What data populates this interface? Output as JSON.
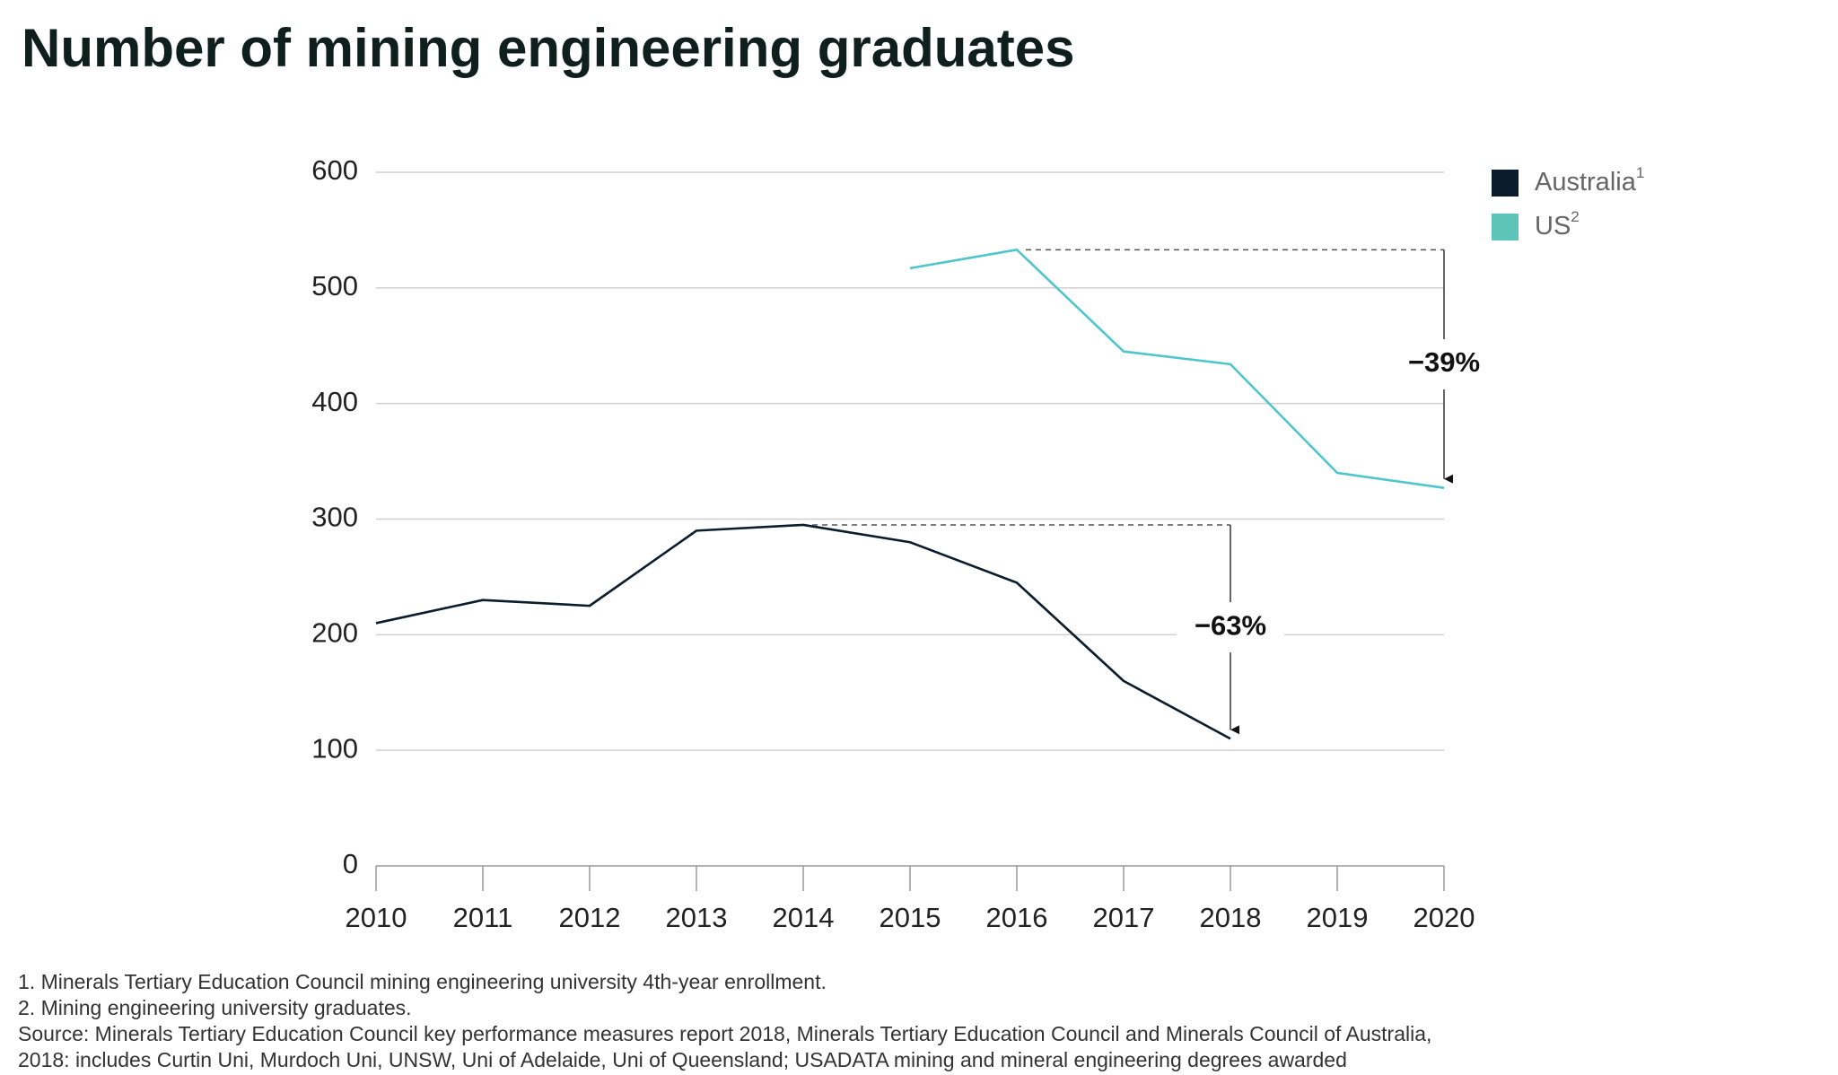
{
  "chart_data": {
    "type": "line",
    "title": "Number of mining engineering graduates",
    "x": [
      2010,
      2011,
      2012,
      2013,
      2014,
      2015,
      2016,
      2017,
      2018,
      2019,
      2020
    ],
    "series": [
      {
        "name": "Australia",
        "note": "1",
        "color": "#0b1c2c",
        "values": [
          210,
          230,
          225,
          290,
          295,
          280,
          245,
          160,
          110,
          null,
          null
        ]
      },
      {
        "name": "US",
        "note": "2",
        "color": "#4fc6cb",
        "values": [
          null,
          null,
          null,
          null,
          null,
          517,
          533,
          445,
          434,
          340,
          327
        ]
      }
    ],
    "xlim": [
      2010,
      2020
    ],
    "xticks": [
      2010,
      2011,
      2012,
      2013,
      2014,
      2015,
      2016,
      2017,
      2018,
      2019,
      2020
    ],
    "ylim": [
      0,
      600
    ],
    "yticks": [
      0,
      100,
      200,
      300,
      400,
      500,
      600
    ],
    "grid": true,
    "legend": "top-right",
    "annotations": [
      "−63%",
      "−39%"
    ],
    "footnotes": [
      "1. Minerals Tertiary Education Council mining engineering university 4th-year enrollment.",
      "2. Mining engineering university graduates.",
      "Source: Minerals Tertiary Education Council key performance measures report 2018, Minerals Tertiary Education Council and Minerals Council of Australia,",
      "2018: includes Curtin Uni, Murdoch Uni, UNSW, Uni of Adelaide, Uni of Queensland; USADATA mining and mineral engineering degrees awarded"
    ]
  }
}
